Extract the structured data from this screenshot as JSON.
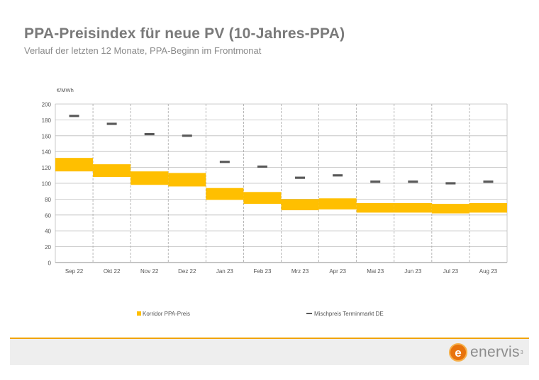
{
  "header": {
    "title": "PPA-Preisindex für neue PV (10-Jahres-PPA)",
    "subtitle": "Verlauf der letzten 12 Monate, PPA-Beginn im Frontmonat"
  },
  "chart_data": {
    "type": "bar",
    "ylabel": "€/MWh",
    "ylim": [
      0,
      200
    ],
    "yticks": [
      0,
      20,
      40,
      60,
      80,
      100,
      120,
      140,
      160,
      180,
      200
    ],
    "categories": [
      "Sep 22",
      "Okt 22",
      "Nov 22",
      "Dez 22",
      "Jan 23",
      "Feb 23",
      "Mrz 23",
      "Apr 23",
      "Mai 23",
      "Jun 23",
      "Jul 23",
      "Aug 23"
    ],
    "series": [
      {
        "name": "Korridor PPA-Preis",
        "kind": "floating-range",
        "color": "#ffbf00",
        "low": [
          115,
          108,
          98,
          96,
          79,
          74,
          66,
          67,
          63,
          63,
          62,
          63
        ],
        "high": [
          132,
          124,
          115,
          113,
          94,
          89,
          80,
          81,
          75,
          75,
          74,
          75
        ]
      },
      {
        "name": "Mischpreis Terminmarkt DE",
        "kind": "marker",
        "color": "#595959",
        "values": [
          185,
          175,
          162,
          160,
          127,
          121,
          107,
          110,
          102,
          102,
          100,
          102
        ]
      }
    ],
    "grid": true,
    "legend": "bottom"
  },
  "brand": {
    "logo_mark": "e",
    "logo_text": "enervis",
    "logo_sup": "3",
    "accent_color": "#f0a400"
  }
}
